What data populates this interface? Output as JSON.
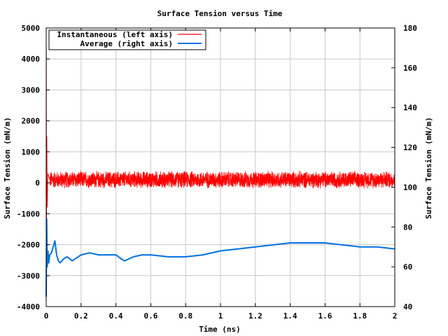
{
  "chart_data": {
    "type": "line",
    "title": "Surface Tension versus Time",
    "xlabel": "Time (ns)",
    "ylabel_left": "Surface Tension (mN/m)",
    "ylabel_right": "Surface Tension (mN/m)",
    "xlim": [
      0,
      2
    ],
    "ylim_left": [
      -4000,
      5000
    ],
    "ylim_right": [
      40,
      180
    ],
    "x_ticks": [
      "0",
      "0.2",
      "0.4",
      "0.6",
      "0.8",
      "1",
      "1.2",
      "1.4",
      "1.6",
      "1.8",
      "2"
    ],
    "y_ticks_left": [
      "-4000",
      "-3000",
      "-2000",
      "-1000",
      "0",
      "1000",
      "2000",
      "3000",
      "4000",
      "5000"
    ],
    "y_ticks_right": [
      "40",
      "60",
      "80",
      "100",
      "120",
      "140",
      "160",
      "180"
    ],
    "grid": true,
    "legend_position": "top-left",
    "series": [
      {
        "name": "Instantaneous (left axis)",
        "axis": "left",
        "color": "#ff0000",
        "description_points": {
          "x": [
            0.0,
            0.001,
            0.002,
            0.004,
            0.006,
            0.01,
            0.02,
            0.5,
            1.0,
            1.5,
            2.0
          ],
          "y": [
            -3500,
            4400,
            -1500,
            1500,
            -800,
            300,
            100,
            100,
            100,
            100,
            100
          ]
        },
        "noise_amplitude": 300
      },
      {
        "name": "Average (right axis)",
        "axis": "right",
        "color": "#0070e0",
        "x": [
          0.0,
          0.003,
          0.006,
          0.01,
          0.015,
          0.02,
          0.03,
          0.04,
          0.05,
          0.06,
          0.07,
          0.08,
          0.1,
          0.12,
          0.15,
          0.2,
          0.25,
          0.3,
          0.35,
          0.4,
          0.43,
          0.45,
          0.5,
          0.55,
          0.6,
          0.7,
          0.8,
          0.9,
          1.0,
          1.1,
          1.2,
          1.3,
          1.4,
          1.5,
          1.6,
          1.7,
          1.8,
          1.9,
          2.0
        ],
        "y": [
          45,
          84,
          60,
          68,
          62,
          66,
          67,
          70,
          73,
          66,
          63,
          62,
          64,
          65,
          63,
          66,
          67,
          66,
          66,
          66,
          64,
          63,
          65,
          66,
          66,
          65,
          65,
          66,
          68,
          69,
          70,
          71,
          72,
          72,
          72,
          71,
          70,
          70,
          69
        ]
      }
    ]
  }
}
